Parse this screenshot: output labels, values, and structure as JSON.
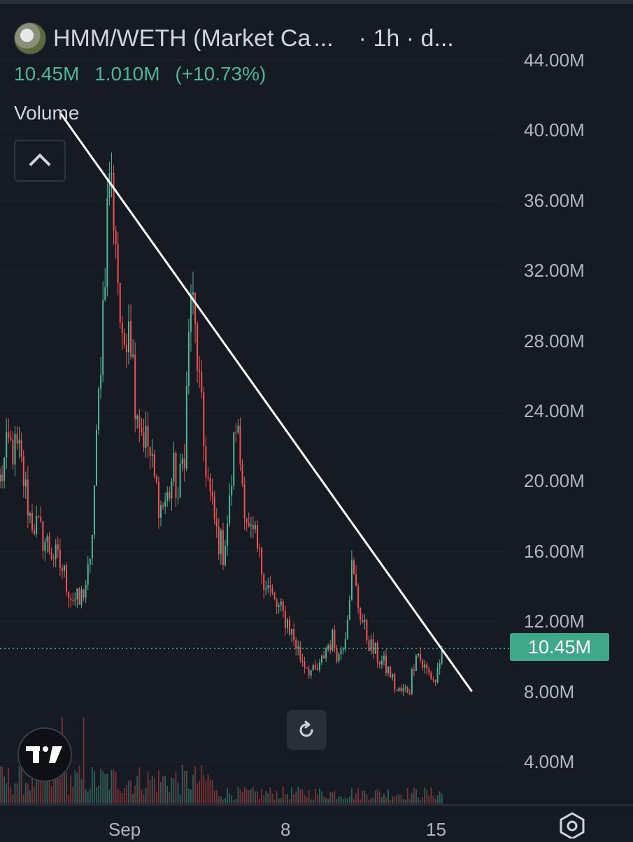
{
  "header": {
    "pair": "HMM/WETH (Market Ca",
    "ellipsis": "...",
    "interval": "· 1h · d...",
    "last_value": "10.45M",
    "change": "1.010M",
    "change_pct": "(+10.73%)"
  },
  "volume_label": "Volume",
  "y_axis_labels": [
    "44.00M",
    "40.00M",
    "36.00M",
    "32.00M",
    "28.00M",
    "24.00M",
    "20.00M",
    "16.00M",
    "12.00M",
    "8.00M",
    "4.00M"
  ],
  "x_axis_labels": [
    "Sep",
    "8",
    "15"
  ],
  "price_badge": "10.45M",
  "colors": {
    "up": "#4eb596",
    "down": "#ef5350",
    "background": "#161a23",
    "trendline": "#ffffff",
    "badge": "#3fa88b"
  },
  "icons": {
    "collapse": "chevron-up-icon",
    "reset": "reset-icon",
    "logo": "tradingview-logo",
    "settings": "settings-icon"
  },
  "chart_data": {
    "type": "candlestick",
    "interval": "1h",
    "series_name": "HMM/WETH (Market Cap)",
    "ylim": [
      2000000,
      46000000
    ],
    "y_ticks": [
      4000000,
      8000000,
      12000000,
      16000000,
      20000000,
      24000000,
      28000000,
      32000000,
      36000000,
      40000000,
      44000000
    ],
    "x_ticks": [
      "Sep",
      "8",
      "15"
    ],
    "last_value": 10450000,
    "change": 1010000,
    "change_pct": 10.73,
    "close_path": [
      [
        0,
        20000000
      ],
      [
        4,
        22000000
      ],
      [
        9,
        21500000
      ],
      [
        14,
        18000000
      ],
      [
        19,
        17000000
      ],
      [
        24,
        16000000
      ],
      [
        29,
        15000000
      ],
      [
        33,
        13500000
      ],
      [
        37,
        13000000
      ],
      [
        42,
        15000000
      ],
      [
        45,
        22000000
      ],
      [
        48,
        30000000
      ],
      [
        51,
        38000000
      ],
      [
        54,
        34000000
      ],
      [
        57,
        27000000
      ],
      [
        60,
        30000000
      ],
      [
        63,
        25000000
      ],
      [
        66,
        23000000
      ],
      [
        69,
        22000000
      ],
      [
        72,
        20000000
      ],
      [
        75,
        18500000
      ],
      [
        78,
        19000000
      ],
      [
        81,
        20500000
      ],
      [
        83,
        19000000
      ],
      [
        86,
        22000000
      ],
      [
        89,
        31000000
      ],
      [
        92,
        27000000
      ],
      [
        95,
        22000000
      ],
      [
        98,
        19000000
      ],
      [
        101,
        17000000
      ],
      [
        104,
        16000000
      ],
      [
        107,
        18500000
      ],
      [
        110,
        23500000
      ],
      [
        113,
        20000000
      ],
      [
        116,
        17000000
      ],
      [
        119,
        16500000
      ],
      [
        122,
        15000000
      ],
      [
        125,
        14000000
      ],
      [
        128,
        13000000
      ],
      [
        131,
        12500000
      ],
      [
        134,
        12000000
      ],
      [
        137,
        11000000
      ],
      [
        140,
        10000000
      ],
      [
        143,
        9500000
      ],
      [
        146,
        9000000
      ],
      [
        149,
        9300000
      ],
      [
        152,
        10500000
      ],
      [
        155,
        11000000
      ],
      [
        158,
        10000000
      ],
      [
        161,
        11500000
      ],
      [
        164,
        15000000
      ],
      [
        167,
        13000000
      ],
      [
        170,
        11500000
      ],
      [
        173,
        10500000
      ],
      [
        176,
        10000000
      ],
      [
        179,
        9500000
      ],
      [
        182,
        9000000
      ],
      [
        185,
        8000000
      ],
      [
        188,
        8000000
      ],
      [
        191,
        8200000
      ],
      [
        194,
        10500000
      ],
      [
        197,
        9500000
      ],
      [
        200,
        9000000
      ],
      [
        203,
        8600000
      ],
      [
        206,
        10450000
      ]
    ],
    "trendline": {
      "from": [
        28,
        41000000
      ],
      "to": [
        220,
        8000000
      ]
    },
    "last_price_line": 10450000,
    "volume_spikes": [
      [
        29,
        7000000
      ],
      [
        39,
        7000000
      ]
    ]
  }
}
